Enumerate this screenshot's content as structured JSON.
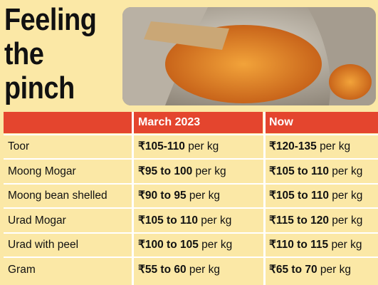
{
  "title_lines": [
    "Feeling",
    "the",
    "pinch"
  ],
  "table": {
    "header": [
      "March 2023",
      "Now"
    ],
    "rows": [
      {
        "name": "Toor",
        "march": {
          "price": "₹105-110",
          "unit": "per kg"
        },
        "now": {
          "price": "₹120-135",
          "unit": "per kg"
        }
      },
      {
        "name": "Moong Mogar",
        "march": {
          "price": "₹95 to 100",
          "unit": "per kg"
        },
        "now": {
          "price": "₹105 to 110",
          "unit": "per kg"
        }
      },
      {
        "name": "Moong bean shelled",
        "march": {
          "price": "₹90 to 95",
          "unit": "per kg"
        },
        "now": {
          "price": "₹105 to 110",
          "unit": "per kg"
        }
      },
      {
        "name": "Urad Mogar",
        "march": {
          "price": "₹105 to 110",
          "unit": "per kg"
        },
        "now": {
          "price": "₹115 to 120",
          "unit": "per kg"
        }
      },
      {
        "name": "Urad with peel",
        "march": {
          "price": "₹100 to 105",
          "unit": "per kg"
        },
        "now": {
          "price": "₹110 to 115",
          "unit": "per kg"
        }
      },
      {
        "name": "Gram",
        "march": {
          "price": "₹55 to 60",
          "unit": "per kg"
        },
        "now": {
          "price": "₹65 to 70",
          "unit": "per kg"
        }
      }
    ]
  }
}
